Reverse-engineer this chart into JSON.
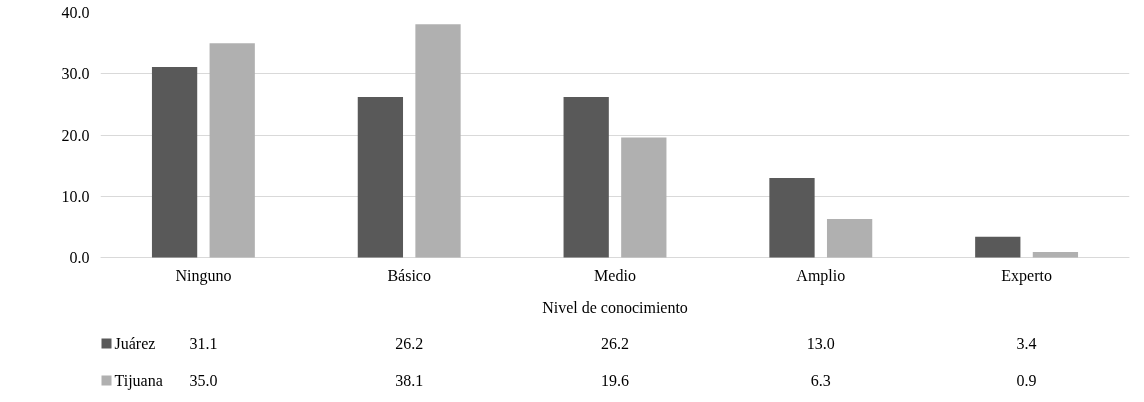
{
  "chart_data": {
    "type": "bar",
    "xlabel": "Nivel de conocimiento",
    "categories": [
      "Ninguno",
      "Básico",
      "Medio",
      "Amplio",
      "Experto"
    ],
    "series": [
      {
        "name": "Juárez",
        "color": "#595959",
        "values": [
          31.1,
          26.2,
          26.2,
          13.0,
          3.4
        ],
        "value_labels": [
          "31.1",
          "26.2",
          "26.2",
          "13.0",
          "3.4"
        ]
      },
      {
        "name": "Tijuana",
        "color": "#b0b0b0",
        "values": [
          35.0,
          38.1,
          19.6,
          6.3,
          0.9
        ],
        "value_labels": [
          "35.0",
          "38.1",
          "19.6",
          "6.3",
          "0.9"
        ]
      }
    ],
    "ylim": [
      0,
      40
    ],
    "yticks": [
      {
        "value": 0,
        "label": "0.0"
      },
      {
        "value": 10,
        "label": "10.0"
      },
      {
        "value": 20,
        "label": "20.0"
      },
      {
        "value": 30,
        "label": "30.0"
      },
      {
        "value": 40,
        "label": "40.0"
      }
    ],
    "grid": "y",
    "legend": "bottom"
  }
}
